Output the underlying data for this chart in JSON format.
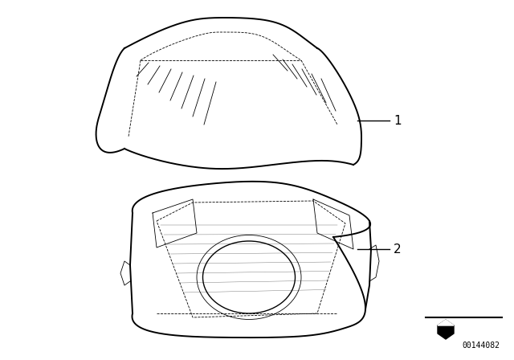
{
  "bg_color": "#ffffff",
  "line_color": "#000000",
  "label1": "1",
  "label2": "2",
  "part_number": "00144082",
  "title": "",
  "figsize": [
    6.4,
    4.48
  ],
  "dpi": 100
}
